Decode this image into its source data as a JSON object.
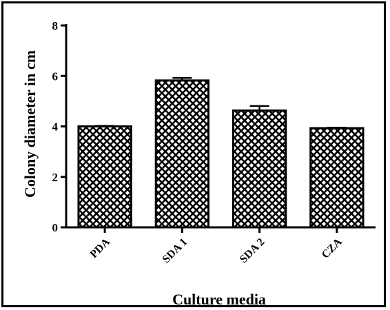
{
  "chart_data": {
    "type": "bar",
    "title": "",
    "xlabel": "Culture media",
    "ylabel": "Colony diameter in cm",
    "categories": [
      "PDA",
      "SDA 1",
      "SDA 2",
      "CZA"
    ],
    "values": [
      4.0,
      5.82,
      4.63,
      3.93
    ],
    "errors": [
      0.02,
      0.1,
      0.18,
      0.02
    ],
    "ylim": [
      0,
      8
    ],
    "yticks": [
      0,
      2,
      4,
      6,
      8
    ],
    "grid": false,
    "bar_fill": "crosshatch",
    "colors": {
      "bar_edge": "#000000",
      "hatch": "#000000",
      "background": "#ffffff"
    }
  }
}
